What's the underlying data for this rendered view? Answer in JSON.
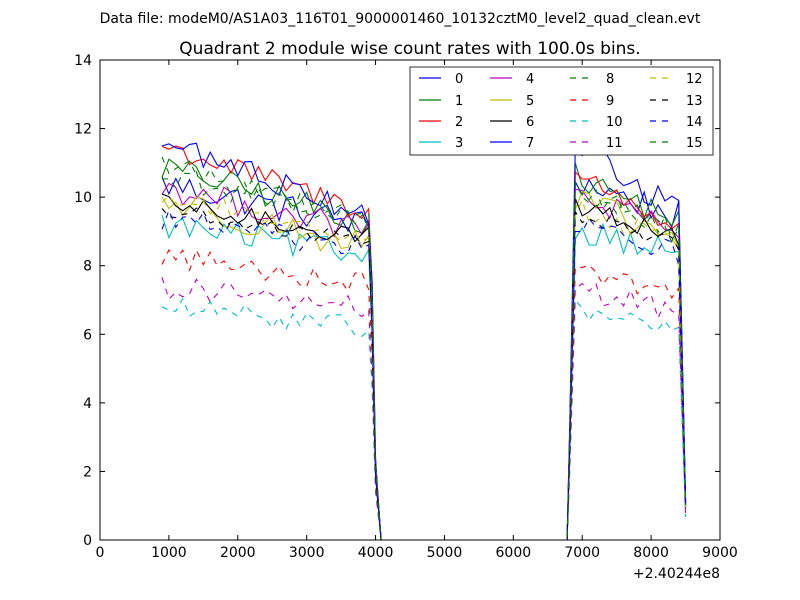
{
  "figure": {
    "suptitle": "Data file: modeM0/AS1A03_116T01_9000001460_10132cztM0_level2_quad_clean.evt",
    "title": "Quadrant 2 module wise count rates with 100.0s bins."
  },
  "chart_data": {
    "type": "line",
    "title": "Quadrant 2 module wise count rates with 100.0s bins.",
    "xlabel": "",
    "ylabel": "",
    "x_offset_label": "+2.40244e8",
    "xlim": [
      0,
      9000
    ],
    "ylim": [
      0,
      14
    ],
    "xticks": [
      0,
      1000,
      2000,
      3000,
      4000,
      5000,
      6000,
      7000,
      8000,
      9000
    ],
    "yticks": [
      0,
      2,
      4,
      6,
      8,
      10,
      12,
      14
    ],
    "grid": false,
    "legend": {
      "position": "top-right",
      "columns": 4
    },
    "bin_seconds": 100,
    "series": [
      {
        "name": "0",
        "color": "#0000ff",
        "dash": "solid",
        "level1": 10.4,
        "level2": 10.5,
        "decay1": 0.12,
        "decay2": 0.1,
        "noise": 0.45
      },
      {
        "name": "1",
        "color": "#008000",
        "dash": "solid",
        "level1": 10.9,
        "level2": 10.6,
        "decay1": 0.15,
        "decay2": 0.12,
        "noise": 0.4
      },
      {
        "name": "2",
        "color": "#ff0000",
        "dash": "solid",
        "level1": 11.5,
        "level2": 10.7,
        "decay1": 0.17,
        "decay2": 0.15,
        "noise": 0.35
      },
      {
        "name": "3",
        "color": "#00bfbf",
        "dash": "solid",
        "level1": 9.2,
        "level2": 9.1,
        "decay1": 0.1,
        "decay2": 0.08,
        "noise": 0.4
      },
      {
        "name": "4",
        "color": "#bf00bf",
        "dash": "solid",
        "level1": 10.3,
        "level2": 10.1,
        "decay1": 0.13,
        "decay2": 0.12,
        "noise": 0.4
      },
      {
        "name": "5",
        "color": "#bfbf00",
        "dash": "solid",
        "level1": 9.9,
        "level2": 9.9,
        "decay1": 0.14,
        "decay2": 0.12,
        "noise": 0.45
      },
      {
        "name": "6",
        "color": "#000000",
        "dash": "solid",
        "level1": 9.8,
        "level2": 9.8,
        "decay1": 0.1,
        "decay2": 0.1,
        "noise": 0.3
      },
      {
        "name": "7",
        "color": "#0000ff",
        "dash": "solid",
        "level1": 11.6,
        "level2": 11.6,
        "decay1": 0.18,
        "decay2": 0.18,
        "noise": 0.4
      },
      {
        "name": "8",
        "color": "#008000",
        "dash": "dashed",
        "level1": 11.0,
        "level2": 10.2,
        "decay1": 0.16,
        "decay2": 0.13,
        "noise": 0.35
      },
      {
        "name": "9",
        "color": "#ff0000",
        "dash": "dashed",
        "level1": 8.3,
        "level2": 8.0,
        "decay1": 0.1,
        "decay2": 0.1,
        "noise": 0.35
      },
      {
        "name": "10",
        "color": "#00bfbf",
        "dash": "dashed",
        "level1": 6.8,
        "level2": 6.7,
        "decay1": 0.09,
        "decay2": 0.08,
        "noise": 0.3
      },
      {
        "name": "11",
        "color": "#bf00bf",
        "dash": "dashed",
        "level1": 7.4,
        "level2": 7.3,
        "decay1": 0.09,
        "decay2": 0.09,
        "noise": 0.35
      },
      {
        "name": "12",
        "color": "#bfbf00",
        "dash": "dashed",
        "level1": 10.0,
        "level2": 9.7,
        "decay1": 0.12,
        "decay2": 0.11,
        "noise": 0.3
      },
      {
        "name": "13",
        "color": "#000000",
        "dash": "dashed",
        "level1": 9.6,
        "level2": 9.5,
        "decay1": 0.1,
        "decay2": 0.09,
        "noise": 0.25
      },
      {
        "name": "14",
        "color": "#0000ff",
        "dash": "dashed",
        "level1": 9.4,
        "level2": 9.2,
        "decay1": 0.1,
        "decay2": 0.09,
        "noise": 0.35
      },
      {
        "name": "15",
        "color": "#008000",
        "dash": "dashed",
        "level1": 10.6,
        "level2": 10.2,
        "decay1": 0.12,
        "decay2": 0.12,
        "noise": 0.35
      }
    ],
    "segments": [
      {
        "start": 900,
        "end": 3950,
        "drop_end": 4000
      },
      {
        "start": 6800,
        "end": 8400,
        "drop_end": 8500
      }
    ]
  }
}
